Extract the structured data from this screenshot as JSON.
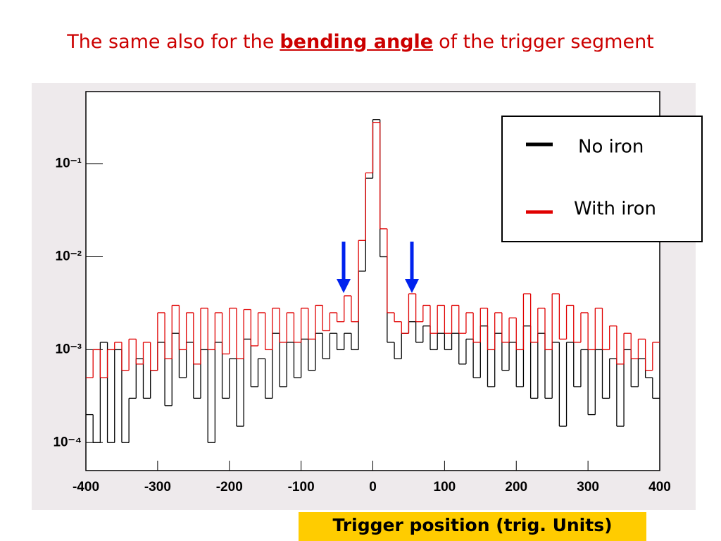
{
  "chart_data": {
    "type": "histogram",
    "title": [
      "The same also for the",
      "bending angle",
      "of the trigger segment"
    ],
    "x_label": "Trigger position (trig. Units)",
    "log_scale": true,
    "legend": "top-right",
    "xlim": [
      -400,
      400
    ],
    "xticks": [
      -400,
      -300,
      -200,
      -100,
      0,
      100,
      200,
      300,
      400
    ],
    "ylim": [
      5e-05,
      0.6
    ],
    "yticks": [
      {
        "value": 0.0001,
        "label": "10⁻⁴"
      },
      {
        "value": 0.001,
        "label": "10⁻³"
      },
      {
        "value": 0.01,
        "label": "10⁻²"
      },
      {
        "value": 0.1,
        "label": "10⁻¹"
      }
    ],
    "bins": [
      -400,
      -390,
      -380,
      -370,
      -360,
      -350,
      -340,
      -330,
      -320,
      -310,
      -300,
      -290,
      -280,
      -270,
      -260,
      -250,
      -240,
      -230,
      -220,
      -210,
      -200,
      -190,
      -180,
      -170,
      -160,
      -150,
      -140,
      -130,
      -120,
      -110,
      -100,
      -90,
      -80,
      -70,
      -60,
      -50,
      -40,
      -30,
      -20,
      -10,
      0,
      10,
      20,
      30,
      40,
      50,
      60,
      70,
      80,
      90,
      100,
      110,
      120,
      130,
      140,
      150,
      160,
      170,
      180,
      190,
      200,
      210,
      220,
      230,
      240,
      250,
      260,
      270,
      280,
      290,
      300,
      310,
      320,
      330,
      340,
      350,
      360,
      370,
      380,
      390,
      400
    ],
    "series": [
      {
        "name": "No iron",
        "color": "#000000",
        "values": [
          0.0002,
          0.0001,
          0.0012,
          0.0001,
          0.001,
          0.0001,
          0.0003,
          0.0008,
          0.0003,
          0.0006,
          0.0012,
          0.00025,
          0.0015,
          0.0005,
          0.0012,
          0.0003,
          0.001,
          0.0001,
          0.0012,
          0.0003,
          0.0008,
          0.00015,
          0.0013,
          0.0004,
          0.0008,
          0.0003,
          0.0015,
          0.0004,
          0.0012,
          0.0005,
          0.0013,
          0.0006,
          0.0015,
          0.0008,
          0.0015,
          0.001,
          0.0015,
          0.001,
          0.007,
          0.07,
          0.3,
          0.01,
          0.0012,
          0.0008,
          0.0015,
          0.002,
          0.0012,
          0.0018,
          0.001,
          0.0015,
          0.001,
          0.0015,
          0.0007,
          0.0013,
          0.0005,
          0.0018,
          0.0004,
          0.0015,
          0.0006,
          0.0012,
          0.0004,
          0.0018,
          0.0003,
          0.0015,
          0.0003,
          0.0012,
          0.00015,
          0.0012,
          0.0004,
          0.001,
          0.0002,
          0.001,
          0.0003,
          0.0008,
          0.00015,
          0.001,
          0.0004,
          0.0008,
          0.0005,
          0.0003
        ]
      },
      {
        "name": "With iron",
        "color": "#e00000",
        "values": [
          0.0005,
          0.001,
          0.0005,
          0.001,
          0.0012,
          0.0006,
          0.0013,
          0.0007,
          0.0012,
          0.0006,
          0.0025,
          0.0008,
          0.003,
          0.001,
          0.0025,
          0.0007,
          0.0028,
          0.001,
          0.0025,
          0.0009,
          0.0028,
          0.0008,
          0.0027,
          0.0011,
          0.0025,
          0.001,
          0.0028,
          0.0012,
          0.0025,
          0.0012,
          0.0028,
          0.0013,
          0.003,
          0.0016,
          0.0025,
          0.002,
          0.0038,
          0.002,
          0.015,
          0.08,
          0.28,
          0.02,
          0.0025,
          0.002,
          0.0015,
          0.004,
          0.002,
          0.003,
          0.0015,
          0.003,
          0.0015,
          0.003,
          0.0015,
          0.0025,
          0.0012,
          0.0028,
          0.001,
          0.0025,
          0.0012,
          0.0022,
          0.001,
          0.004,
          0.0012,
          0.0028,
          0.001,
          0.004,
          0.0013,
          0.003,
          0.0012,
          0.0025,
          0.001,
          0.0028,
          0.001,
          0.0018,
          0.0007,
          0.0015,
          0.0008,
          0.0013,
          0.0006,
          0.0012
        ]
      }
    ]
  }
}
